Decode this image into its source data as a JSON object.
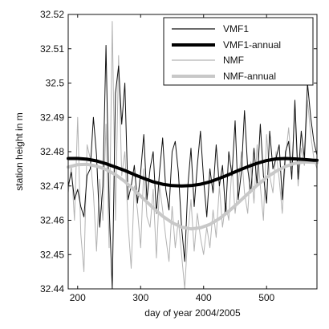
{
  "chart_data": {
    "type": "line",
    "title": "",
    "xlabel": "day of year 2004/2005",
    "ylabel": "station height in m",
    "xlim": [
      185,
      580
    ],
    "ylim": [
      32.44,
      32.52
    ],
    "xticks": [
      200,
      300,
      400,
      500
    ],
    "xtick_labels": [
      "200",
      "300",
      "400",
      "500"
    ],
    "yticks": [
      32.44,
      32.45,
      32.46,
      32.47,
      32.48,
      32.49,
      32.5,
      32.51,
      32.52
    ],
    "ytick_labels": [
      "32.44",
      "32.45",
      "32.46",
      "32.47",
      "32.48",
      "32.49",
      "32.5",
      "32.51",
      "32.52"
    ],
    "grid": false,
    "legend_position": "top-right",
    "series": [
      {
        "name": "VMF1",
        "color": "#111111",
        "style": "thin",
        "x": [
          185,
          190,
          195,
          200,
          205,
          210,
          215,
          220,
          225,
          230,
          235,
          240,
          245,
          250,
          255,
          260,
          265,
          270,
          275,
          280,
          285,
          290,
          295,
          300,
          305,
          310,
          315,
          320,
          325,
          330,
          335,
          340,
          345,
          350,
          355,
          360,
          365,
          370,
          375,
          380,
          385,
          390,
          395,
          400,
          405,
          410,
          415,
          420,
          425,
          430,
          435,
          440,
          445,
          450,
          455,
          460,
          465,
          470,
          475,
          480,
          485,
          490,
          495,
          500,
          505,
          510,
          515,
          520,
          525,
          530,
          535,
          540,
          545,
          550,
          555,
          560,
          565,
          570,
          575,
          580
        ],
        "y": [
          32.47,
          32.474,
          32.466,
          32.469,
          32.464,
          32.461,
          32.473,
          32.475,
          32.49,
          32.479,
          32.458,
          32.47,
          32.511,
          32.464,
          32.44,
          32.497,
          32.505,
          32.488,
          32.5,
          32.466,
          32.47,
          32.476,
          32.465,
          32.474,
          32.485,
          32.466,
          32.475,
          32.48,
          32.462,
          32.474,
          32.484,
          32.469,
          32.463,
          32.48,
          32.483,
          32.474,
          32.458,
          32.448,
          32.47,
          32.481,
          32.464,
          32.476,
          32.486,
          32.472,
          32.461,
          32.475,
          32.468,
          32.482,
          32.47,
          32.476,
          32.462,
          32.48,
          32.473,
          32.489,
          32.466,
          32.474,
          32.492,
          32.475,
          32.468,
          32.481,
          32.47,
          32.488,
          32.473,
          32.465,
          32.486,
          32.475,
          32.478,
          32.482,
          32.466,
          32.48,
          32.483,
          32.472,
          32.495,
          32.472,
          32.486,
          32.478,
          32.5,
          32.49,
          32.483,
          32.479
        ]
      },
      {
        "name": "VMF1-annual",
        "color": "#000000",
        "style": "thick",
        "x": [
          185,
          200,
          215,
          230,
          245,
          260,
          275,
          290,
          305,
          320,
          335,
          350,
          365,
          380,
          395,
          410,
          425,
          440,
          455,
          470,
          485,
          500,
          515,
          530,
          545,
          560,
          575,
          580
        ],
        "y": [
          32.478,
          32.478,
          32.4778,
          32.4773,
          32.4765,
          32.4755,
          32.4745,
          32.4733,
          32.4722,
          32.4712,
          32.4705,
          32.4701,
          32.47,
          32.4701,
          32.4705,
          32.4712,
          32.4722,
          32.4733,
          32.4745,
          32.4756,
          32.4766,
          32.4774,
          32.4779,
          32.478,
          32.4779,
          32.4777,
          32.4775,
          32.4775
        ]
      },
      {
        "name": "NMF",
        "color": "#b3b3b3",
        "style": "thin",
        "x": [
          185,
          190,
          195,
          200,
          205,
          210,
          215,
          220,
          225,
          230,
          235,
          240,
          245,
          250,
          255,
          260,
          265,
          270,
          275,
          280,
          285,
          290,
          295,
          300,
          305,
          310,
          315,
          320,
          325,
          330,
          335,
          340,
          345,
          350,
          355,
          360,
          365,
          370,
          375,
          380,
          385,
          390,
          395,
          400,
          405,
          410,
          415,
          420,
          425,
          430,
          435,
          440,
          445,
          450,
          455,
          460,
          465,
          470,
          475,
          480,
          485,
          490,
          495,
          500,
          505,
          510,
          515,
          520,
          525,
          530,
          535,
          540,
          545,
          550,
          555,
          560,
          565,
          570,
          575,
          580
        ],
        "y": [
          32.468,
          32.476,
          32.46,
          32.49,
          32.456,
          32.445,
          32.482,
          32.478,
          32.468,
          32.451,
          32.472,
          32.46,
          32.488,
          32.452,
          32.518,
          32.46,
          32.508,
          32.473,
          32.48,
          32.459,
          32.446,
          32.47,
          32.463,
          32.452,
          32.475,
          32.461,
          32.458,
          32.469,
          32.449,
          32.47,
          32.463,
          32.455,
          32.448,
          32.464,
          32.452,
          32.46,
          32.45,
          32.44,
          32.456,
          32.466,
          32.451,
          32.462,
          32.455,
          32.45,
          32.458,
          32.452,
          32.463,
          32.455,
          32.47,
          32.458,
          32.465,
          32.46,
          32.476,
          32.462,
          32.47,
          32.48,
          32.468,
          32.462,
          32.477,
          32.465,
          32.482,
          32.47,
          32.46,
          32.485,
          32.473,
          32.468,
          32.48,
          32.472,
          32.462,
          32.478,
          32.487,
          32.475,
          32.492,
          32.47,
          32.481,
          32.476,
          32.495,
          32.485,
          32.478,
          32.475
        ]
      },
      {
        "name": "NMF-annual",
        "color": "#c8c8c8",
        "style": "thick",
        "x": [
          185,
          200,
          215,
          230,
          245,
          260,
          275,
          290,
          305,
          320,
          335,
          350,
          365,
          380,
          395,
          410,
          425,
          440,
          455,
          470,
          485,
          500,
          515,
          530,
          545,
          560,
          575,
          580
        ],
        "y": [
          32.4755,
          32.4762,
          32.4763,
          32.4758,
          32.4748,
          32.4733,
          32.4713,
          32.4688,
          32.4662,
          32.4636,
          32.4612,
          32.4593,
          32.458,
          32.4575,
          32.4578,
          32.4588,
          32.4605,
          32.4626,
          32.4651,
          32.4677,
          32.4702,
          32.4725,
          32.4743,
          32.4757,
          32.4766,
          32.477,
          32.4769,
          32.4768
        ]
      }
    ]
  }
}
